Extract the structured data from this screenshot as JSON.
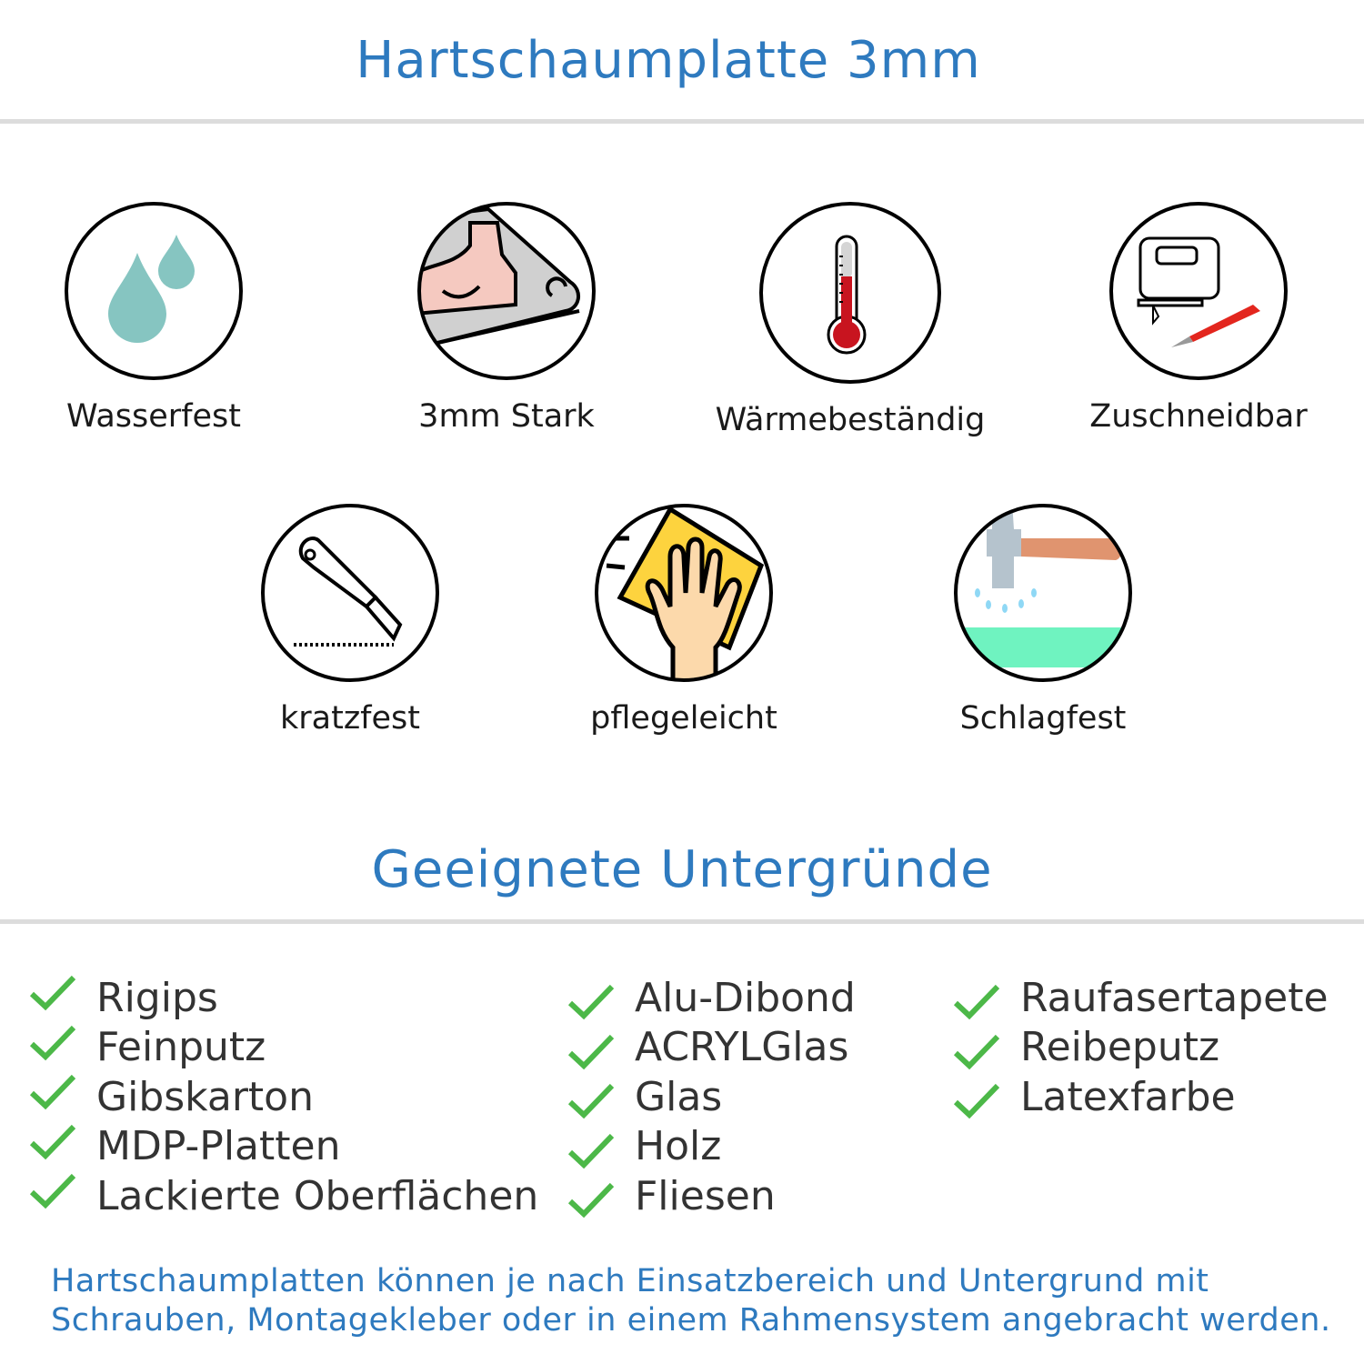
{
  "header": {
    "title": "Hartschaumplatte 3mm"
  },
  "features": [
    {
      "label": "Wasserfest",
      "icon": "water-drops-icon"
    },
    {
      "label": "3mm Stark",
      "icon": "strong-arm-icon"
    },
    {
      "label": "Wärmebeständig",
      "icon": "thermometer-icon"
    },
    {
      "label": "Zuschneidbar",
      "icon": "jigsaw-knife-icon"
    },
    {
      "label": "kratzfest",
      "icon": "cutter-knife-icon"
    },
    {
      "label": "pflegeleicht",
      "icon": "hand-wipe-icon"
    },
    {
      "label": "Schlagfest",
      "icon": "hammer-icon"
    }
  ],
  "surfaces": {
    "title": "Geeignete Untergründe",
    "columns": [
      [
        "Rigips",
        "Feinputz",
        "Gibskarton",
        "MDP-Platten",
        "Lackierte Oberflächen"
      ],
      [
        "Alu-Dibond",
        "ACRYLGlas",
        "Glas",
        "Holz",
        "Fliesen"
      ],
      [
        "Raufasertapete",
        "Reibeputz",
        "Latexfarbe"
      ]
    ],
    "check_color": "#4cb848"
  },
  "footer": {
    "line1": "Hartschaumplatten können je nach Einsatzbereich und Untergrund mit",
    "line2": "Schrauben, Montagekleber oder in einem Rahmensystem angebracht werden."
  },
  "colors": {
    "accent": "#2e7abf",
    "divider": "#dcdcdc"
  }
}
